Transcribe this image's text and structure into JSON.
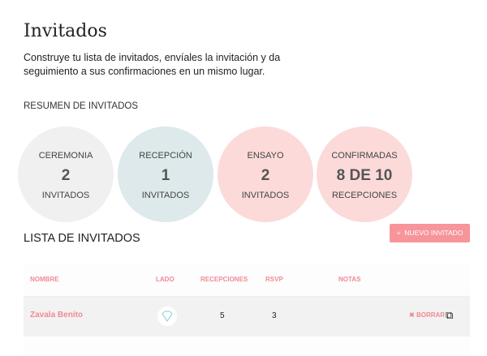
{
  "header": {
    "title": "Invitados",
    "description": "Construye tu lista de invitados, envíales la invitación y da seguimiento a sus confirmaciones en un mismo lugar."
  },
  "summary": {
    "label": "RESUMEN DE INVITADOS",
    "cards": [
      {
        "title": "CEREMONIA",
        "value": "2",
        "unit": "INVITADOS",
        "color": "#f0f0f0"
      },
      {
        "title": "RECEPCIÓN",
        "value": "1",
        "unit": "INVITADOS",
        "color": "#dde9ea"
      },
      {
        "title": "ENSAYO",
        "value": "2",
        "unit": "INVITADOS",
        "color": "#fcdada"
      },
      {
        "title": "CONFIRMADAS",
        "value": "8 DE 10",
        "unit": "RECEPCIONES",
        "color": "#fcdada"
      }
    ]
  },
  "list": {
    "label": "LISTA DE INVITADOS",
    "new_button": "NUEVO INVITADO",
    "new_icon": "plus-icon",
    "columns": [
      "NOMBRE",
      "LADO",
      "RECEPCIONES",
      "RSVP",
      "NOTAS"
    ],
    "rows": [
      {
        "name": "Zavala Benito",
        "lado_icon": "diamond-icon",
        "recepciones": "5",
        "rsvp": "3",
        "notas": "",
        "delete": "BORRAR"
      }
    ]
  },
  "colors": {
    "accent": "#f7959b",
    "text_accent": "#f08a96"
  }
}
